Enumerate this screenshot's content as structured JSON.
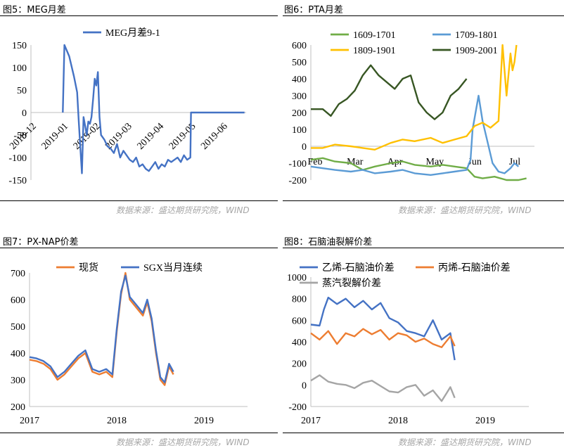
{
  "panels": [
    {
      "id": "fig5",
      "title": "图5：MEG月差",
      "source": "数据来源：盛达期货研究院，WIND"
    },
    {
      "id": "fig6",
      "title": "图6：PTA月差",
      "source": "数据来源：盛达期货研究院，WIND"
    },
    {
      "id": "fig7",
      "title": "图7：PX-NAP价差",
      "source": "数据来源：盛达期货研究院，WIND"
    },
    {
      "id": "fig8",
      "title": "图8：石脑油裂解价差",
      "source": "数据来源：盛达期货研究院，WIND"
    }
  ],
  "chart_data": [
    {
      "id": "fig5",
      "type": "line",
      "ylim": [
        -150,
        150
      ],
      "yticks": [
        150,
        100,
        50,
        0,
        -50,
        -100,
        -150
      ],
      "xticks": [
        "2018-12",
        "2019-01",
        "2019-02",
        "2019-03",
        "2019-04",
        "2019-05",
        "2019-06"
      ],
      "xtick_pos": [
        0,
        1,
        2,
        3,
        4,
        5,
        6
      ],
      "xlim": [
        0,
        6.75
      ],
      "legend": "top",
      "series": [
        {
          "name": "MEG月差9-1",
          "color": "#4472c4",
          "x": [
            1.0,
            1.05,
            1.2,
            1.35,
            1.45,
            1.5,
            1.55,
            1.6,
            1.65,
            1.7,
            1.75,
            1.8,
            1.85,
            1.9,
            1.95,
            2.0,
            2.05,
            2.1,
            2.15,
            2.2,
            2.3,
            2.4,
            2.5,
            2.6,
            2.7,
            2.8,
            2.9,
            3.0,
            3.1,
            3.2,
            3.3,
            3.4,
            3.5,
            3.6,
            3.7,
            3.8,
            3.9,
            4.0,
            4.1,
            4.2,
            4.3,
            4.4,
            4.5,
            4.6,
            4.7,
            4.8,
            4.9,
            5.0,
            5.02,
            5.1,
            5.5,
            6.0,
            6.5,
            6.7
          ],
          "y": [
            0,
            150,
            125,
            80,
            45,
            -20,
            -80,
            -135,
            -10,
            -30,
            -50,
            -20,
            -25,
            -10,
            30,
            75,
            60,
            90,
            -10,
            -50,
            -60,
            -75,
            -80,
            -90,
            -70,
            -100,
            -85,
            -95,
            -105,
            -110,
            -100,
            -120,
            -115,
            -125,
            -130,
            -120,
            -110,
            -125,
            -115,
            -120,
            -105,
            -110,
            -105,
            -100,
            -110,
            -95,
            -105,
            -100,
            0,
            0,
            0,
            0,
            0,
            0
          ]
        }
      ]
    },
    {
      "id": "fig6",
      "type": "line",
      "ylim": [
        -200,
        600
      ],
      "yticks": [
        600,
        500,
        400,
        300,
        200,
        100,
        0,
        -100,
        -200
      ],
      "xticks": [
        "Feb",
        "Mar",
        "Apr",
        "May",
        "Jun",
        "Jul"
      ],
      "xtick_pos": [
        0,
        1,
        2,
        3,
        4,
        5
      ],
      "xlim": [
        0,
        5.6
      ],
      "legend": "top",
      "series": [
        {
          "name": "1609-1701",
          "color": "#70ad47",
          "x": [
            0,
            0.3,
            0.6,
            1,
            1.3,
            1.6,
            2,
            2.3,
            2.6,
            3,
            3.3,
            3.6,
            3.9,
            4.1,
            4.3,
            4.6,
            4.9,
            5.2,
            5.4
          ],
          "y": [
            -80,
            -70,
            -90,
            -100,
            -140,
            -120,
            -100,
            -90,
            -110,
            -120,
            -110,
            -120,
            -130,
            -180,
            -190,
            -180,
            -200,
            -200,
            -190
          ]
        },
        {
          "name": "1709-1801",
          "color": "#5b9bd5",
          "x": [
            0,
            0.3,
            0.6,
            1,
            1.3,
            1.6,
            2,
            2.3,
            2.6,
            3,
            3.3,
            3.6,
            3.9,
            4.0,
            4.05,
            4.2,
            4.3,
            4.4,
            4.55,
            4.7,
            4.85,
            5.0,
            5.1,
            5.2
          ],
          "y": [
            -120,
            -130,
            -140,
            -150,
            -140,
            -160,
            -150,
            -140,
            -160,
            -170,
            -160,
            -150,
            -140,
            -80,
            100,
            300,
            150,
            50,
            -100,
            -150,
            -160,
            -130,
            -100,
            -120
          ]
        },
        {
          "name": "1809-1901",
          "color": "#ffc000",
          "x": [
            0,
            0.3,
            0.6,
            1,
            1.3,
            1.6,
            2,
            2.3,
            2.6,
            3,
            3.3,
            3.6,
            3.9,
            4.1,
            4.3,
            4.5,
            4.7,
            4.8,
            4.9,
            5.0,
            5.05,
            5.1,
            5.15
          ],
          "y": [
            -10,
            -10,
            10,
            0,
            -10,
            -20,
            20,
            40,
            30,
            50,
            20,
            40,
            60,
            120,
            140,
            110,
            150,
            600,
            300,
            550,
            450,
            500,
            600
          ]
        },
        {
          "name": "1909-2001",
          "color": "#375623",
          "x": [
            0,
            0.3,
            0.5,
            0.7,
            0.9,
            1.1,
            1.3,
            1.5,
            1.7,
            1.9,
            2.1,
            2.3,
            2.5,
            2.7,
            2.9,
            3.1,
            3.3,
            3.5,
            3.7,
            3.9
          ],
          "y": [
            220,
            220,
            180,
            250,
            280,
            330,
            420,
            480,
            420,
            380,
            340,
            400,
            420,
            260,
            200,
            160,
            200,
            300,
            340,
            400
          ]
        }
      ]
    },
    {
      "id": "fig7",
      "type": "line",
      "ylim": [
        200,
        700
      ],
      "yticks": [
        700,
        600,
        500,
        400,
        300,
        200
      ],
      "xticks": [
        "2017",
        "2018",
        "2019"
      ],
      "xtick_pos": [
        0,
        1,
        2
      ],
      "xlim": [
        0,
        2.5
      ],
      "legend": "top",
      "series": [
        {
          "name": "现货",
          "color": "#ed7d31",
          "x": [
            0,
            0.08,
            0.16,
            0.24,
            0.32,
            0.4,
            0.48,
            0.56,
            0.64,
            0.72,
            0.8,
            0.88,
            0.95,
            1.0,
            1.05,
            1.1,
            1.15,
            1.2,
            1.25,
            1.3,
            1.35,
            1.4,
            1.45,
            1.5,
            1.55,
            1.6,
            1.65
          ],
          "y": [
            375,
            370,
            360,
            340,
            300,
            320,
            350,
            380,
            400,
            330,
            320,
            330,
            310,
            480,
            620,
            700,
            600,
            580,
            560,
            540,
            590,
            520,
            400,
            300,
            280,
            350,
            320
          ]
        },
        {
          "name": "SGX当月连续",
          "color": "#4472c4",
          "x": [
            0,
            0.08,
            0.16,
            0.24,
            0.32,
            0.4,
            0.48,
            0.56,
            0.64,
            0.72,
            0.8,
            0.88,
            0.95,
            1.0,
            1.05,
            1.1,
            1.15,
            1.2,
            1.25,
            1.3,
            1.35,
            1.4,
            1.45,
            1.5,
            1.55,
            1.6,
            1.65
          ],
          "y": [
            385,
            380,
            370,
            350,
            310,
            330,
            360,
            390,
            410,
            340,
            330,
            340,
            320,
            490,
            630,
            690,
            610,
            590,
            570,
            550,
            600,
            530,
            410,
            310,
            290,
            360,
            330
          ]
        }
      ]
    },
    {
      "id": "fig8",
      "type": "line",
      "ylim": [
        -200,
        1000
      ],
      "yticks": [
        1000,
        800,
        600,
        400,
        200,
        0,
        -200
      ],
      "xticks": [
        "2017",
        "2018",
        "2019"
      ],
      "xtick_pos": [
        0,
        1,
        2
      ],
      "xlim": [
        0,
        2.5
      ],
      "legend": "top",
      "series": [
        {
          "name": "乙烯-石脑油价差",
          "color": "#4472c4",
          "x": [
            0,
            0.1,
            0.15,
            0.2,
            0.3,
            0.4,
            0.5,
            0.6,
            0.7,
            0.8,
            0.9,
            1.0,
            1.1,
            1.2,
            1.3,
            1.4,
            1.5,
            1.6,
            1.65
          ],
          "y": [
            560,
            550,
            700,
            810,
            750,
            800,
            720,
            780,
            700,
            760,
            620,
            580,
            500,
            480,
            450,
            600,
            420,
            480,
            230
          ]
        },
        {
          "name": "丙烯-石脑油价差",
          "color": "#ed7d31",
          "x": [
            0,
            0.1,
            0.2,
            0.3,
            0.4,
            0.5,
            0.6,
            0.7,
            0.8,
            0.9,
            1.0,
            1.1,
            1.2,
            1.3,
            1.4,
            1.5,
            1.6,
            1.65
          ],
          "y": [
            480,
            420,
            500,
            380,
            480,
            450,
            520,
            470,
            510,
            420,
            480,
            460,
            400,
            430,
            380,
            350,
            450,
            360
          ]
        },
        {
          "name": "蒸汽裂解价差",
          "color": "#a5a5a5",
          "x": [
            0,
            0.1,
            0.2,
            0.3,
            0.4,
            0.5,
            0.6,
            0.7,
            0.8,
            0.9,
            1.0,
            1.1,
            1.2,
            1.3,
            1.4,
            1.5,
            1.6,
            1.65
          ],
          "y": [
            40,
            90,
            30,
            10,
            0,
            -30,
            20,
            40,
            -10,
            -60,
            -70,
            -20,
            0,
            -100,
            -50,
            -150,
            -20,
            -120
          ]
        }
      ]
    }
  ]
}
